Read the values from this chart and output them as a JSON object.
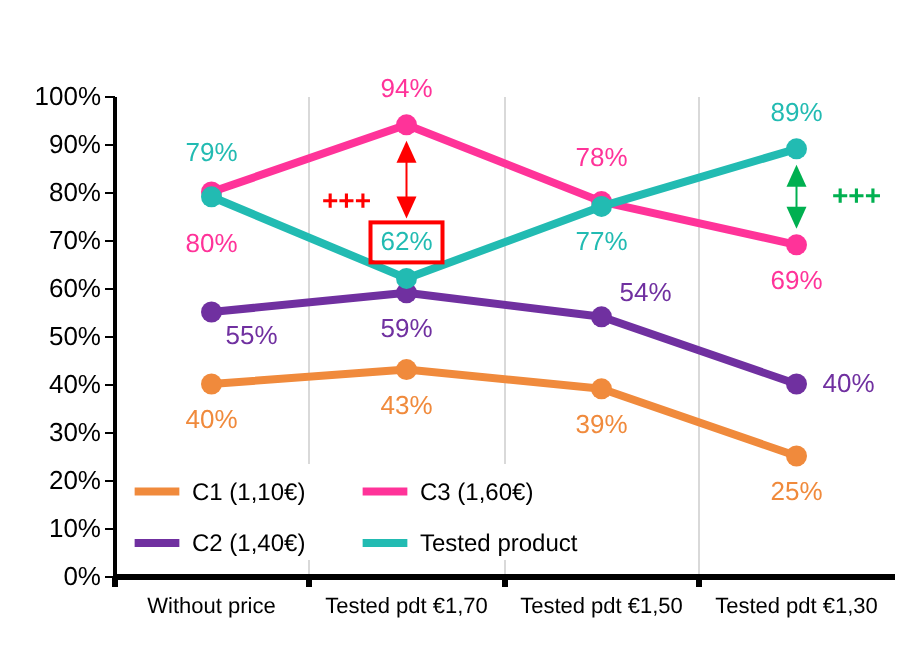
{
  "chart_data": {
    "type": "line",
    "categories": [
      "Without price",
      "Tested pdt €1,70",
      "Tested pdt €1,50",
      "Tested pdt €1,30"
    ],
    "series": [
      {
        "name": "C1 (1,10€)",
        "color": "#f08a3c",
        "values": [
          40,
          43,
          39,
          25
        ],
        "value_labels": [
          "40%",
          "43%",
          "39%",
          "25%"
        ]
      },
      {
        "name": "C2 (1,40€)",
        "color": "#7030a0",
        "values": [
          55,
          59,
          54,
          40
        ],
        "value_labels": [
          "55%",
          "59%",
          "54%",
          "40%"
        ]
      },
      {
        "name": "C3 (1,60€)",
        "color": "#ff3399",
        "values": [
          80,
          94,
          78,
          69
        ],
        "value_labels": [
          "80%",
          "94%",
          "78%",
          "69%"
        ]
      },
      {
        "name": "Tested product",
        "color": "#22bbb2",
        "values": [
          79,
          62,
          77,
          89
        ],
        "value_labels": [
          "79%",
          "62%",
          "77%",
          "89%"
        ]
      }
    ],
    "ylim": [
      0,
      100
    ],
    "yticks": [
      {
        "value": 0,
        "label": "0%"
      },
      {
        "value": 10,
        "label": "10%"
      },
      {
        "value": 20,
        "label": "20%"
      },
      {
        "value": 30,
        "label": "30%"
      },
      {
        "value": 40,
        "label": "40%"
      },
      {
        "value": 50,
        "label": "50%"
      },
      {
        "value": 60,
        "label": "60%"
      },
      {
        "value": 70,
        "label": "70%"
      },
      {
        "value": 80,
        "label": "80%"
      },
      {
        "value": 90,
        "label": "90%"
      },
      {
        "value": 100,
        "label": "100%"
      }
    ],
    "annotations": [
      "+++",
      "+++"
    ],
    "grid": "x",
    "legend": "bottom left",
    "marker": "circle",
    "line_style": "solid"
  }
}
